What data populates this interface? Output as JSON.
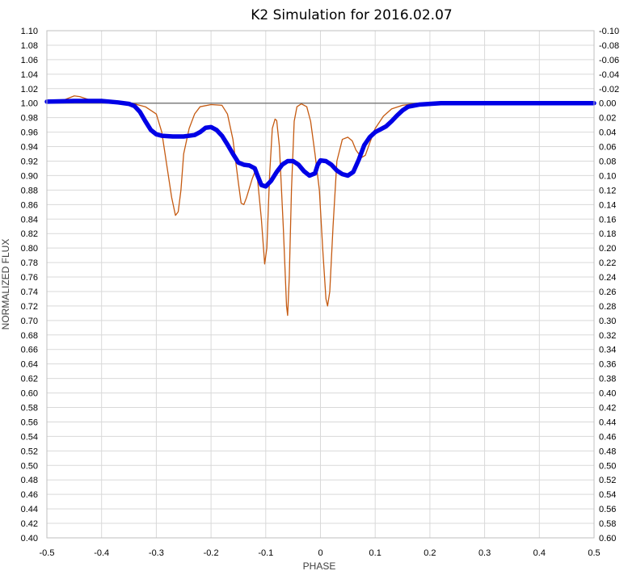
{
  "chart_data": {
    "type": "line",
    "title": "K2 Simulation for 2016.02.07",
    "xlabel": "PHASE",
    "ylabel": "NORMALIZED FLUX",
    "xlim": [
      -0.5,
      0.5
    ],
    "ylim": [
      0.4,
      1.1
    ],
    "y2lim": [
      0.6,
      -0.1
    ],
    "x_ticks": [
      "-0.5",
      "-0.4",
      "-0.3",
      "-0.2",
      "-0.1",
      "0",
      "0.1",
      "0.2",
      "0.3",
      "0.4",
      "0.5"
    ],
    "y_ticks": [
      "1.10",
      "1.08",
      "1.06",
      "1.04",
      "1.02",
      "1.00",
      "0.98",
      "0.96",
      "0.94",
      "0.92",
      "0.90",
      "0.88",
      "0.86",
      "0.84",
      "0.82",
      "0.80",
      "0.78",
      "0.76",
      "0.74",
      "0.72",
      "0.70",
      "0.68",
      "0.66",
      "0.64",
      "0.62",
      "0.60",
      "0.58",
      "0.56",
      "0.54",
      "0.52",
      "0.50",
      "0.48",
      "0.46",
      "0.44",
      "0.42",
      "0.40"
    ],
    "y2_ticks": [
      "-0.10",
      "-0.08",
      "-0.06",
      "-0.04",
      "-0.02",
      "0.00",
      "0.02",
      "0.04",
      "0.06",
      "0.08",
      "0.10",
      "0.12",
      "0.14",
      "0.16",
      "0.18",
      "0.20",
      "0.22",
      "0.24",
      "0.26",
      "0.28",
      "0.30",
      "0.32",
      "0.34",
      "0.36",
      "0.38",
      "0.40",
      "0.42",
      "0.44",
      "0.46",
      "0.48",
      "0.50",
      "0.52",
      "0.54",
      "0.56",
      "0.58",
      "0.60"
    ],
    "grid": true,
    "legend": "none",
    "reference_line": {
      "y": 1.0,
      "color": "#7f7f7f"
    },
    "series": [
      {
        "color": "#c55a11",
        "style": "thin",
        "points": [
          [
            -0.5,
            1.0
          ],
          [
            -0.47,
            1.004
          ],
          [
            -0.45,
            1.01
          ],
          [
            -0.44,
            1.009
          ],
          [
            -0.42,
            1.004
          ],
          [
            -0.4,
            1.002
          ],
          [
            -0.37,
            1.0
          ],
          [
            -0.34,
            0.999
          ],
          [
            -0.32,
            0.995
          ],
          [
            -0.3,
            0.985
          ],
          [
            -0.29,
            0.96
          ],
          [
            -0.28,
            0.91
          ],
          [
            -0.272,
            0.87
          ],
          [
            -0.265,
            0.845
          ],
          [
            -0.26,
            0.85
          ],
          [
            -0.255,
            0.88
          ],
          [
            -0.25,
            0.93
          ],
          [
            -0.24,
            0.965
          ],
          [
            -0.23,
            0.985
          ],
          [
            -0.22,
            0.995
          ],
          [
            -0.2,
            0.998
          ],
          [
            -0.18,
            0.997
          ],
          [
            -0.17,
            0.985
          ],
          [
            -0.16,
            0.95
          ],
          [
            -0.15,
            0.89
          ],
          [
            -0.145,
            0.862
          ],
          [
            -0.14,
            0.86
          ],
          [
            -0.135,
            0.87
          ],
          [
            -0.125,
            0.895
          ],
          [
            -0.12,
            0.905
          ],
          [
            -0.115,
            0.895
          ],
          [
            -0.108,
            0.84
          ],
          [
            -0.102,
            0.778
          ],
          [
            -0.098,
            0.8
          ],
          [
            -0.093,
            0.9
          ],
          [
            -0.088,
            0.965
          ],
          [
            -0.083,
            0.978
          ],
          [
            -0.08,
            0.976
          ],
          [
            -0.075,
            0.94
          ],
          [
            -0.068,
            0.83
          ],
          [
            -0.062,
            0.72
          ],
          [
            -0.06,
            0.707
          ],
          [
            -0.057,
            0.76
          ],
          [
            -0.053,
            0.88
          ],
          [
            -0.048,
            0.975
          ],
          [
            -0.043,
            0.995
          ],
          [
            -0.035,
            0.999
          ],
          [
            -0.025,
            0.995
          ],
          [
            -0.018,
            0.975
          ],
          [
            -0.01,
            0.93
          ],
          [
            -0.002,
            0.88
          ],
          [
            0.004,
            0.8
          ],
          [
            0.01,
            0.73
          ],
          [
            0.013,
            0.72
          ],
          [
            0.017,
            0.74
          ],
          [
            0.023,
            0.83
          ],
          [
            0.03,
            0.92
          ],
          [
            0.04,
            0.95
          ],
          [
            0.05,
            0.953
          ],
          [
            0.058,
            0.948
          ],
          [
            0.065,
            0.935
          ],
          [
            0.075,
            0.925
          ],
          [
            0.082,
            0.928
          ],
          [
            0.09,
            0.945
          ],
          [
            0.1,
            0.965
          ],
          [
            0.115,
            0.982
          ],
          [
            0.13,
            0.992
          ],
          [
            0.15,
            0.997
          ],
          [
            0.17,
            0.999
          ],
          [
            0.2,
            0.999
          ],
          [
            0.25,
            0.999
          ],
          [
            0.4,
            0.999
          ],
          [
            0.5,
            0.999
          ]
        ]
      },
      {
        "color": "#0000e6",
        "style": "thick",
        "points": [
          [
            -0.5,
            1.002
          ],
          [
            -0.45,
            1.003
          ],
          [
            -0.4,
            1.003
          ],
          [
            -0.37,
            1.001
          ],
          [
            -0.35,
            0.999
          ],
          [
            -0.34,
            0.996
          ],
          [
            -0.33,
            0.988
          ],
          [
            -0.32,
            0.975
          ],
          [
            -0.31,
            0.963
          ],
          [
            -0.3,
            0.957
          ],
          [
            -0.29,
            0.955
          ],
          [
            -0.27,
            0.954
          ],
          [
            -0.25,
            0.954
          ],
          [
            -0.23,
            0.956
          ],
          [
            -0.22,
            0.96
          ],
          [
            -0.21,
            0.966
          ],
          [
            -0.2,
            0.967
          ],
          [
            -0.19,
            0.963
          ],
          [
            -0.18,
            0.955
          ],
          [
            -0.17,
            0.943
          ],
          [
            -0.16,
            0.93
          ],
          [
            -0.15,
            0.918
          ],
          [
            -0.14,
            0.915
          ],
          [
            -0.13,
            0.914
          ],
          [
            -0.12,
            0.91
          ],
          [
            -0.115,
            0.9
          ],
          [
            -0.108,
            0.887
          ],
          [
            -0.1,
            0.885
          ],
          [
            -0.09,
            0.893
          ],
          [
            -0.08,
            0.905
          ],
          [
            -0.07,
            0.915
          ],
          [
            -0.06,
            0.92
          ],
          [
            -0.05,
            0.92
          ],
          [
            -0.04,
            0.915
          ],
          [
            -0.03,
            0.906
          ],
          [
            -0.02,
            0.9
          ],
          [
            -0.01,
            0.903
          ],
          [
            -0.005,
            0.915
          ],
          [
            0.0,
            0.921
          ],
          [
            0.01,
            0.92
          ],
          [
            0.02,
            0.915
          ],
          [
            0.03,
            0.907
          ],
          [
            0.04,
            0.902
          ],
          [
            0.05,
            0.9
          ],
          [
            0.06,
            0.905
          ],
          [
            0.07,
            0.922
          ],
          [
            0.08,
            0.942
          ],
          [
            0.09,
            0.953
          ],
          [
            0.1,
            0.96
          ],
          [
            0.11,
            0.964
          ],
          [
            0.12,
            0.968
          ],
          [
            0.13,
            0.975
          ],
          [
            0.14,
            0.983
          ],
          [
            0.15,
            0.99
          ],
          [
            0.16,
            0.995
          ],
          [
            0.18,
            0.998
          ],
          [
            0.2,
            0.999
          ],
          [
            0.22,
            1.0
          ],
          [
            0.3,
            1.0
          ],
          [
            0.4,
            1.0
          ],
          [
            0.5,
            1.0
          ]
        ]
      }
    ]
  }
}
